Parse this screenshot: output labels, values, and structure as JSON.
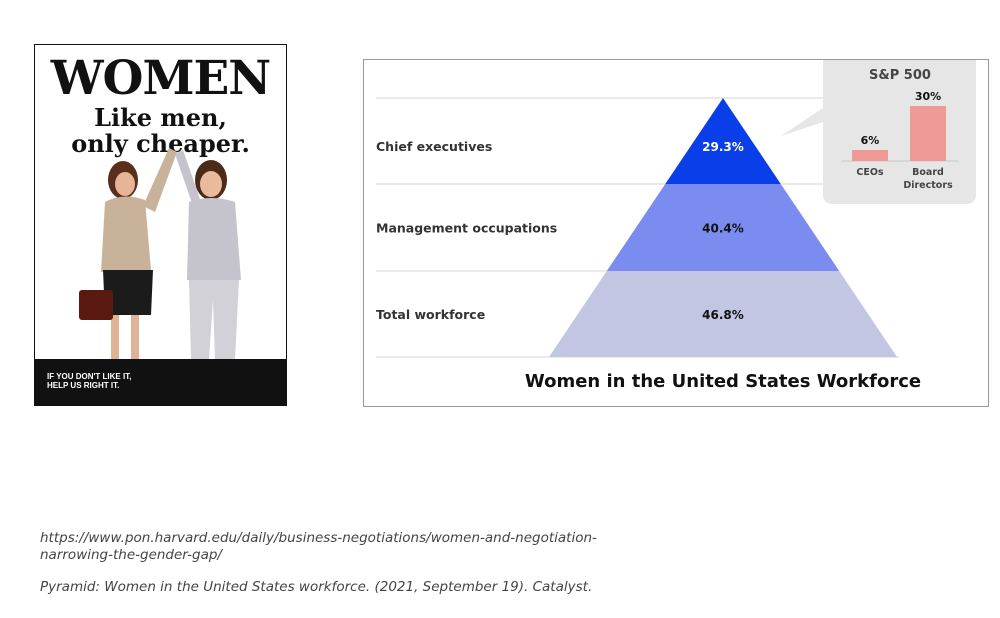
{
  "poster": {
    "title": "WOMEN",
    "subtitle_line1": "Like men,",
    "subtitle_line2": "only cheaper.",
    "footer_line1": "IF YOU DON'T LIKE IT,",
    "footer_line2": "HELP US RIGHT IT."
  },
  "chart_data": [
    {
      "type": "pyramid",
      "title": "Women in the United States Workforce",
      "categories": [
        "Chief executives",
        "Management occupations",
        "Total workforce"
      ],
      "values": [
        29.3,
        40.4,
        46.8
      ],
      "value_labels": [
        "29.3%",
        "40.4%",
        "46.8%"
      ],
      "colors": [
        "#0a3ee8",
        "#7b8cf0",
        "#c2c6e3"
      ],
      "label_colors": [
        "#ffffff",
        "#111111",
        "#111111"
      ]
    },
    {
      "type": "bar",
      "title": "S&P 500",
      "categories": [
        "CEOs",
        "Board Directors"
      ],
      "values": [
        6,
        30
      ],
      "value_labels": [
        "6%",
        "30%"
      ],
      "ylim": [
        0,
        30
      ],
      "bar_color": "#ef9a96"
    }
  ],
  "captions": {
    "source1": "https://www.pon.harvard.edu/daily/business-negotiations/women-and-negotiation-narrowing-the-gender-gap/",
    "source2": "Pyramid: Women in the United States workforce. (2021, September 19). Catalyst."
  }
}
